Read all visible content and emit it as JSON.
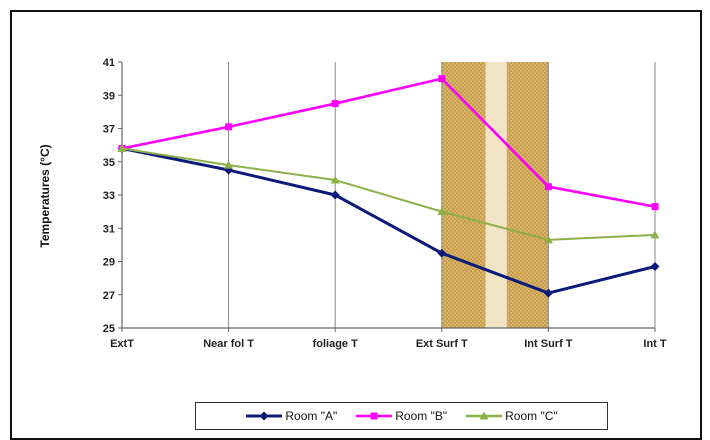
{
  "chart_data": {
    "type": "line",
    "title": "",
    "xlabel": "",
    "ylabel": "Temperatures (°C)",
    "categories": [
      "ExtT",
      "Near fol T",
      "foliage T",
      "Ext Surf T",
      "Int Surf T",
      "Int T"
    ],
    "ylim": [
      25,
      41
    ],
    "yticks": [
      "25",
      "27",
      "29",
      "31",
      "33",
      "35",
      "37",
      "39",
      "41"
    ],
    "grid": "vertical",
    "legend_position": "bottom",
    "highlight_band": {
      "from_category": "Ext Surf T",
      "to_category": "Int Surf T",
      "color": "#d8b060"
    },
    "series": [
      {
        "name": "Room \"A\"",
        "color": "#0a1a7a",
        "marker": "diamond",
        "values": [
          35.8,
          34.5,
          33.0,
          29.5,
          27.1,
          28.7
        ]
      },
      {
        "name": "Room \"B\"",
        "color": "#ff00ff",
        "marker": "square",
        "values": [
          35.8,
          37.1,
          38.5,
          40.0,
          33.5,
          32.3
        ]
      },
      {
        "name": "Room \"C\"",
        "color": "#8db04a",
        "marker": "triangle",
        "values": [
          35.8,
          34.8,
          33.9,
          32.0,
          30.3,
          30.6
        ]
      }
    ]
  }
}
